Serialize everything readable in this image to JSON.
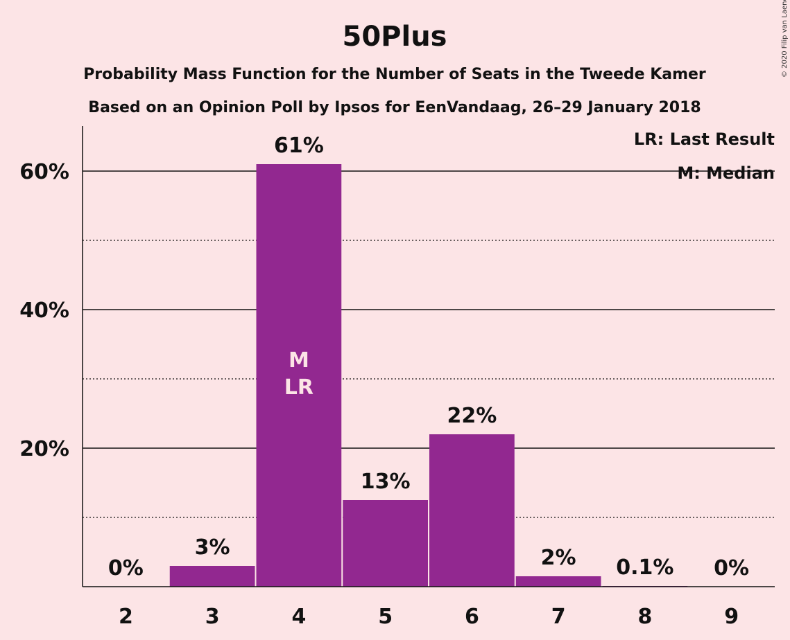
{
  "chart_data": {
    "type": "bar",
    "title": "50Plus",
    "subtitle": "Probability Mass Function for the Number of Seats in the Tweede Kamer",
    "subtitle2": "Based on an Opinion Poll by Ipsos for EenVandaag, 26–29 January 2018",
    "categories": [
      "2",
      "3",
      "4",
      "5",
      "6",
      "7",
      "8",
      "9"
    ],
    "values": [
      0,
      3,
      61,
      12.5,
      22,
      1.5,
      0.1,
      0
    ],
    "labels": [
      "0%",
      "3%",
      "61%",
      "13%",
      "22%",
      "2%",
      "0.1%",
      "0%"
    ],
    "ylim": [
      0,
      67
    ],
    "yticks": [
      20,
      40,
      60
    ],
    "ytick_labels": [
      "20%",
      "40%",
      "60%"
    ],
    "minor_gridlines": [
      10,
      30,
      50
    ],
    "bar_color": "#922890",
    "median_index": 2,
    "last_result_index": 2,
    "median_marker": "M",
    "last_result_marker": "LR",
    "legend": [
      "LR: Last Result",
      "M: Median"
    ],
    "legend_position": "top-right",
    "copyright": "© 2020 Filip van Laenen"
  }
}
